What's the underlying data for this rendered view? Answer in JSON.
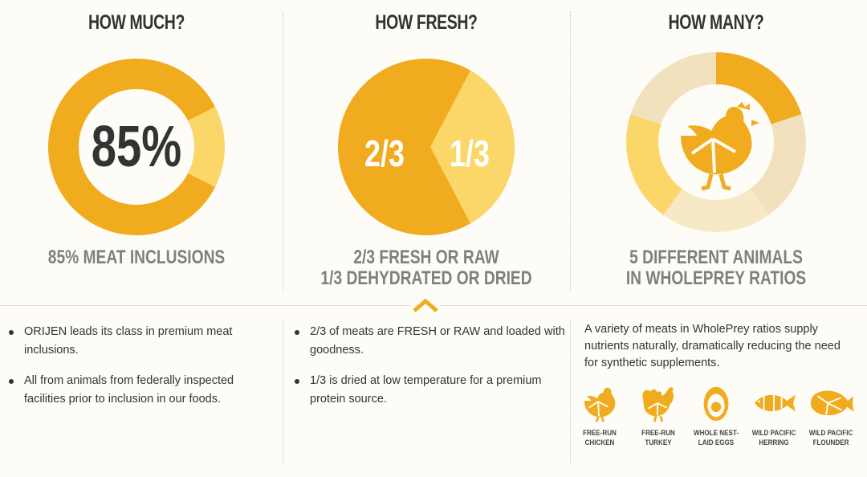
{
  "colors": {
    "dark": "#f0ac1e",
    "light": "#fbd668",
    "pale": "#f2e1bd",
    "pale2": "#f7e9c6",
    "text": "#333333",
    "caption": "#7f7f7f"
  },
  "columns": [
    {
      "title": "HOW MUCH?",
      "caption_lines": [
        "85% MEAT INCLUSIONS"
      ]
    },
    {
      "title": "HOW FRESH?",
      "caption_lines": [
        "2/3 FRESH OR RAW",
        "1/3 DEHYDRATED OR DRIED"
      ]
    },
    {
      "title": "HOW MANY?",
      "caption_lines": [
        "5 DIFFERENT ANIMALS",
        "IN WHOLEPREY RATIOS"
      ]
    }
  ],
  "chart_data": [
    {
      "type": "pie",
      "style": "donut",
      "center_label": "85%",
      "slices": [
        {
          "label": "Meat inclusions",
          "value": 85,
          "color": "#f0ac1e"
        },
        {
          "label": "Other",
          "value": 15,
          "color": "#fbd668"
        }
      ]
    },
    {
      "type": "pie",
      "slices": [
        {
          "label": "2/3",
          "value": 66.67,
          "color": "#f0ac1e"
        },
        {
          "label": "1/3",
          "value": 33.33,
          "color": "#fbd668"
        }
      ]
    },
    {
      "type": "pie",
      "style": "donut",
      "center_icon": "chicken-icon",
      "slices": [
        {
          "value": 20,
          "color": "#f0ac1e"
        },
        {
          "value": 20,
          "color": "#f2e1bd"
        },
        {
          "value": 20,
          "color": "#f7e9c6"
        },
        {
          "value": 20,
          "color": "#fbd668"
        },
        {
          "value": 20,
          "color": "#f2e1bd"
        }
      ]
    }
  ],
  "details": {
    "col1_bullets": [
      "ORIJEN leads its class in premium meat inclusions.",
      "All from animals from federally inspected facilities prior to inclusion in our foods."
    ],
    "col2_bullets": [
      "2/3 of meats are FRESH or RAW and loaded with goodness.",
      "1/3 is dried at low temperature for a premium protein source."
    ],
    "col3_paragraph": "A variety of meats in WholePrey ratios supply nutrients naturally, dramatically reducing the need for synthetic supplements.",
    "animals": [
      {
        "icon": "chicken-icon",
        "label_lines": [
          "FREE-RUN",
          "CHICKEN"
        ]
      },
      {
        "icon": "turkey-icon",
        "label_lines": [
          "FREE-RUN",
          "TURKEY"
        ]
      },
      {
        "icon": "egg-icon",
        "label_lines": [
          "WHOLE NEST-",
          "LAID EGGS"
        ]
      },
      {
        "icon": "fish-icon",
        "label_lines": [
          "WILD PACIFIC",
          "HERRING"
        ]
      },
      {
        "icon": "flounder-icon",
        "label_lines": [
          "WILD PACIFIC",
          "FLOUNDER"
        ]
      }
    ]
  }
}
